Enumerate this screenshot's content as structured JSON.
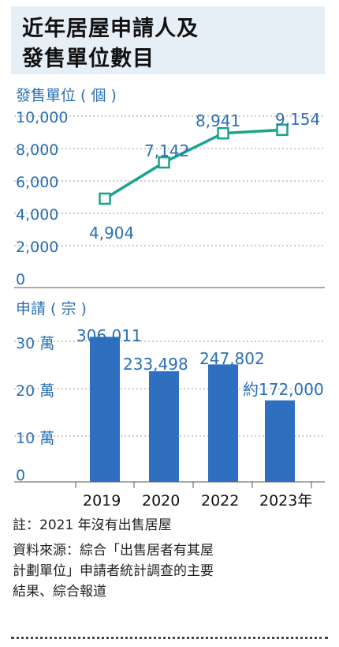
{
  "title": {
    "line1": "近年居屋申請人及",
    "line2": "發售單位數目"
  },
  "chart_data": [
    {
      "type": "line",
      "ylabel": "發售單位 ( 個 )",
      "y_ticks": [
        "10,000",
        "8,000",
        "6,000",
        "4,000",
        "2,000",
        "0"
      ],
      "ylim": [
        0,
        10000
      ],
      "categories": [
        "2019",
        "2020",
        "2022",
        "2023"
      ],
      "values": [
        4904,
        7142,
        8941,
        9154
      ],
      "value_labels": [
        "4,904",
        "7,142",
        "8,941",
        "9,154"
      ],
      "grid": "horizontal dashed",
      "color": "#1aa38f"
    },
    {
      "type": "bar",
      "ylabel": "申請 ( 宗 )",
      "y_ticks": [
        "30 萬",
        "20 萬",
        "10 萬",
        "0"
      ],
      "ylim": [
        0,
        300000
      ],
      "categories": [
        "2019",
        "2020",
        "2022",
        "2023年"
      ],
      "values": [
        306011,
        233498,
        247802,
        172000
      ],
      "value_labels": [
        "306,011",
        "233,498",
        "247,802",
        "約172,000"
      ],
      "grid": "horizontal dashed",
      "color": "#2f6fbf"
    }
  ],
  "notes": {
    "note": "註：2021 年沒有出售居屋",
    "source_line1": "資料來源：綜合「出售居者有其屋",
    "source_line2": "計劃單位」申請者統計調查的主要",
    "source_line3": "結果、綜合報道"
  },
  "colors": {
    "blue_text": "#2a6fb5",
    "grid": "#999999"
  }
}
